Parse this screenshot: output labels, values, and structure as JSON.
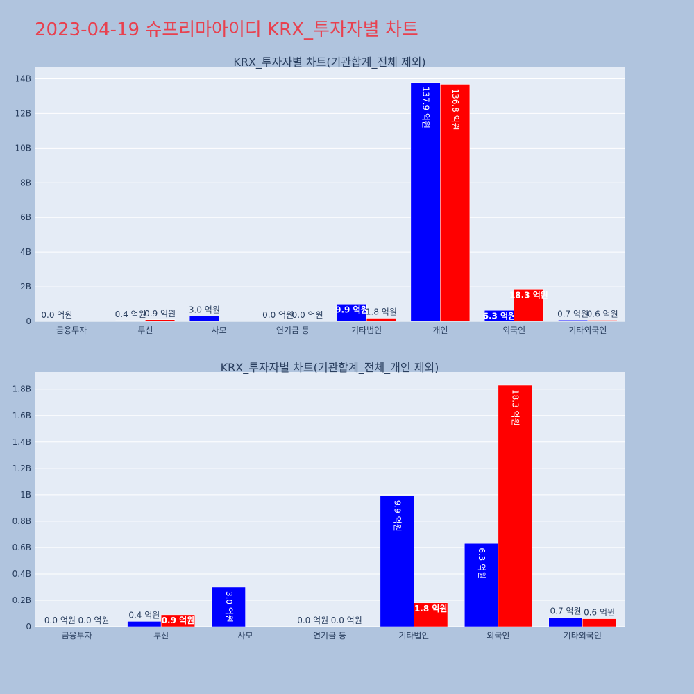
{
  "title": "2023-04-19 슈프리마아이디 KRX_투자자별 차트",
  "colors": {
    "background": "#b0c4de",
    "plot_background": "#e5ecf6",
    "title": "#e8414f",
    "buy": "#0000ff",
    "sell": "#ff0000",
    "text": "#2a3f5f"
  },
  "chart_data": [
    {
      "type": "bar",
      "title": "KRX_투자자별 차트(기관합계_전체 제외)",
      "categories": [
        "금융투자",
        "투신",
        "사모",
        "연기금 등",
        "기타법인",
        "개인",
        "외국인",
        "기타외국인"
      ],
      "series": [
        {
          "color": "#0000ff",
          "values": [
            0,
            40000000,
            300000000,
            0,
            990000000,
            13790000000,
            630000000,
            70000000
          ],
          "labels": [
            "0.0 억원",
            "0.4 억원",
            "3.0 억원",
            "0.0 억원",
            "9.9 억원",
            "137.9 억원",
            "6.3 억원",
            "0.7 억원"
          ]
        },
        {
          "color": "#ff0000",
          "values": [
            0,
            90000000,
            null,
            0,
            180000000,
            13680000000,
            1830000000,
            60000000
          ],
          "labels": [
            "",
            "0.9 억원",
            "",
            "0.0 억원",
            "1.8 억원",
            "136.8 억원",
            "18.3 억원",
            "0.6 억원"
          ]
        }
      ],
      "ylim": [
        0,
        14700000000
      ],
      "yticks": [
        0,
        2000000000,
        4000000000,
        6000000000,
        8000000000,
        10000000000,
        12000000000,
        14000000000
      ],
      "ytick_labels": [
        "0",
        "2B",
        "4B",
        "6B",
        "8B",
        "10B",
        "12B",
        "14B"
      ],
      "grid": true,
      "xlabel": "",
      "ylabel": ""
    },
    {
      "type": "bar",
      "title": "KRX_투자자별 차트(기관합계_전체_개인 제외)",
      "categories": [
        "금융투자",
        "투신",
        "사모",
        "연기금 등",
        "기타법인",
        "외국인",
        "기타외국인"
      ],
      "series": [
        {
          "color": "#0000ff",
          "values": [
            0,
            40000000,
            300000000,
            0,
            990000000,
            630000000,
            70000000
          ],
          "labels": [
            "0.0 억원",
            "0.4 억원",
            "3.0 억원",
            "0.0 억원",
            "9.9 억원",
            "6.3 억원",
            "0.7 억원"
          ]
        },
        {
          "color": "#ff0000",
          "values": [
            0,
            90000000,
            null,
            0,
            180000000,
            1830000000,
            60000000
          ],
          "labels": [
            "0.0 억원",
            "0.9 억원",
            "",
            "0.0 억원",
            "1.8 억원",
            "18.3 억원",
            "0.6 억원"
          ]
        }
      ],
      "ylim": [
        0,
        1930000000
      ],
      "yticks": [
        0,
        200000000,
        400000000,
        600000000,
        800000000,
        1000000000,
        1200000000,
        1400000000,
        1600000000,
        1800000000
      ],
      "ytick_labels": [
        "0",
        "0.2B",
        "0.4B",
        "0.6B",
        "0.8B",
        "1B",
        "1.2B",
        "1.4B",
        "1.6B",
        "1.8B"
      ],
      "grid": true,
      "xlabel": "",
      "ylabel": ""
    }
  ]
}
